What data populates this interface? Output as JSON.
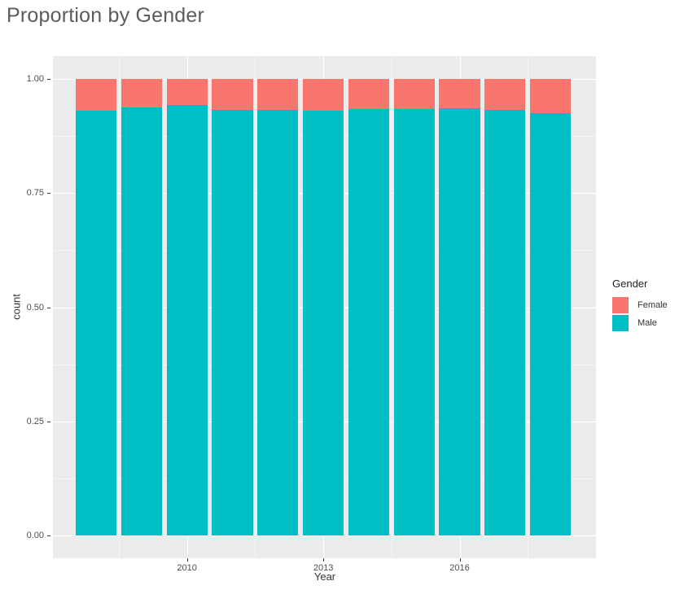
{
  "title": "Proportion by Gender",
  "chart_data": {
    "type": "bar",
    "stacked": true,
    "title": "Proportion by Gender",
    "xlabel": "Year",
    "ylabel": "count",
    "categories": [
      2008,
      2009,
      2010,
      2011,
      2012,
      2013,
      2014,
      2015,
      2016,
      2017,
      2018
    ],
    "series": [
      {
        "name": "Female",
        "color": "#F8766D",
        "values": [
          0.07,
          0.063,
          0.057,
          0.067,
          0.067,
          0.069,
          0.066,
          0.066,
          0.064,
          0.068,
          0.074
        ]
      },
      {
        "name": "Male",
        "color": "#00BFC4",
        "values": [
          0.93,
          0.937,
          0.943,
          0.933,
          0.933,
          0.931,
          0.934,
          0.934,
          0.936,
          0.932,
          0.926
        ]
      }
    ],
    "legend": {
      "title": "Gender",
      "position": "right",
      "entries": [
        "Female",
        "Male"
      ]
    },
    "x_ticks": [
      {
        "label": "2010",
        "value": 2010
      },
      {
        "label": "2013",
        "value": 2013
      },
      {
        "label": "2016",
        "value": 2016
      }
    ],
    "y_ticks": [
      {
        "label": "1.00",
        "value": 1.0
      },
      {
        "label": "0.75",
        "value": 0.75
      },
      {
        "label": "0.50",
        "value": 0.5
      },
      {
        "label": "0.25",
        "value": 0.25
      },
      {
        "label": "0.00",
        "value": 0.0
      }
    ],
    "y_minor": [
      0.875,
      0.625,
      0.375,
      0.125
    ],
    "x_minor": [
      2008.5,
      2011.5,
      2014.5,
      2017.5
    ],
    "ylim": [
      -0.05,
      1.05
    ],
    "xlim": [
      2007.05,
      2019.0
    ],
    "bar_width_years": 0.9,
    "grid": true,
    "colors": {
      "panel_bg": "#EBEBEB",
      "grid": "#FFFFFF",
      "tick": "#333333",
      "tick_label": "#4D4D4D",
      "axis_title": "#333333",
      "title": "#5C5C5C"
    }
  }
}
